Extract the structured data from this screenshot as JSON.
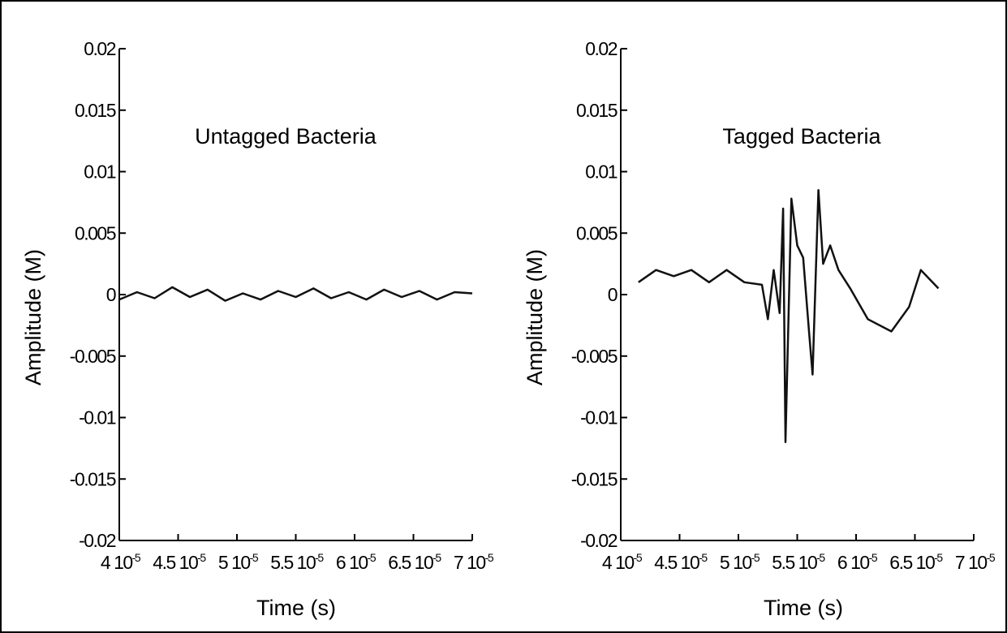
{
  "chart_data": [
    {
      "type": "line",
      "title": "Untagged Bacteria",
      "xlabel": "Time (s)",
      "ylabel": "Amplitude (M)",
      "xlim": [
        4e-05,
        7e-05
      ],
      "ylim": [
        -0.02,
        0.02
      ],
      "yticks": [
        {
          "value": 0.02,
          "label": "0.02"
        },
        {
          "value": 0.015,
          "label": "0.015"
        },
        {
          "value": 0.01,
          "label": "0.01"
        },
        {
          "value": 0.005,
          "label": "0.005"
        },
        {
          "value": 0,
          "label": "0"
        },
        {
          "value": -0.005,
          "label": "-0.005"
        },
        {
          "value": -0.01,
          "label": "-0.01"
        },
        {
          "value": -0.015,
          "label": "-0.015"
        },
        {
          "value": -0.02,
          "label": "-0.02"
        }
      ],
      "xticks": [
        {
          "value": 4e-05,
          "mantissa": "4",
          "exp": "-5"
        },
        {
          "value": 4.5e-05,
          "mantissa": "4.5",
          "exp": "-5"
        },
        {
          "value": 5e-05,
          "mantissa": "5",
          "exp": "-5"
        },
        {
          "value": 5.5e-05,
          "mantissa": "5.5",
          "exp": "-5"
        },
        {
          "value": 6e-05,
          "mantissa": "6",
          "exp": "-5"
        },
        {
          "value": 6.5e-05,
          "mantissa": "6.5",
          "exp": "-5"
        },
        {
          "value": 7e-05,
          "mantissa": "7",
          "exp": "-5"
        }
      ],
      "series": [
        {
          "x_unit": 1e-05,
          "x": [
            4.0,
            4.15,
            4.3,
            4.45,
            4.6,
            4.75,
            4.9,
            5.05,
            5.2,
            5.35,
            5.5,
            5.65,
            5.8,
            5.95,
            6.1,
            6.25,
            6.4,
            6.55,
            6.7,
            6.85,
            7.0
          ],
          "y": [
            -0.0004,
            0.0002,
            -0.0003,
            0.0006,
            -0.0002,
            0.0004,
            -0.0005,
            0.0001,
            -0.0004,
            0.0003,
            -0.0002,
            0.0005,
            -0.0003,
            0.0002,
            -0.0004,
            0.0004,
            -0.0002,
            0.0003,
            -0.0004,
            0.0002,
            0.0001
          ]
        }
      ]
    },
    {
      "type": "line",
      "title": "Tagged Bacteria",
      "xlabel": "Time (s)",
      "ylabel": "Amplitude (M)",
      "xlim": [
        4e-05,
        7e-05
      ],
      "ylim": [
        -0.02,
        0.02
      ],
      "yticks": [
        {
          "value": 0.02,
          "label": "0.02"
        },
        {
          "value": 0.015,
          "label": "0.015"
        },
        {
          "value": 0.01,
          "label": "0.01"
        },
        {
          "value": 0.005,
          "label": "0.005"
        },
        {
          "value": 0,
          "label": "0"
        },
        {
          "value": -0.005,
          "label": "-0.005"
        },
        {
          "value": -0.01,
          "label": "-0.01"
        },
        {
          "value": -0.015,
          "label": "-0.015"
        },
        {
          "value": -0.02,
          "label": "-0.02"
        }
      ],
      "xticks": [
        {
          "value": 4e-05,
          "mantissa": "4",
          "exp": "-5"
        },
        {
          "value": 4.5e-05,
          "mantissa": "4.5",
          "exp": "-5"
        },
        {
          "value": 5e-05,
          "mantissa": "5",
          "exp": "-5"
        },
        {
          "value": 5.5e-05,
          "mantissa": "5.5",
          "exp": "-5"
        },
        {
          "value": 6e-05,
          "mantissa": "6",
          "exp": "-5"
        },
        {
          "value": 6.5e-05,
          "mantissa": "6.5",
          "exp": "-5"
        },
        {
          "value": 7e-05,
          "mantissa": "7",
          "exp": "-5"
        }
      ],
      "series": [
        {
          "x_unit": 1e-05,
          "x": [
            4.15,
            4.3,
            4.45,
            4.6,
            4.75,
            4.9,
            5.05,
            5.2,
            5.25,
            5.3,
            5.35,
            5.38,
            5.4,
            5.45,
            5.5,
            5.55,
            5.6,
            5.63,
            5.68,
            5.72,
            5.78,
            5.85,
            5.95,
            6.1,
            6.3,
            6.45,
            6.55,
            6.7
          ],
          "y": [
            0.001,
            0.002,
            0.0015,
            0.002,
            0.001,
            0.002,
            0.001,
            0.0008,
            -0.002,
            0.002,
            -0.0015,
            0.007,
            -0.012,
            0.0078,
            0.004,
            0.003,
            -0.003,
            -0.0065,
            0.0085,
            0.0025,
            0.004,
            0.002,
            0.0005,
            -0.002,
            -0.003,
            -0.001,
            0.002,
            0.0005
          ]
        }
      ]
    }
  ]
}
